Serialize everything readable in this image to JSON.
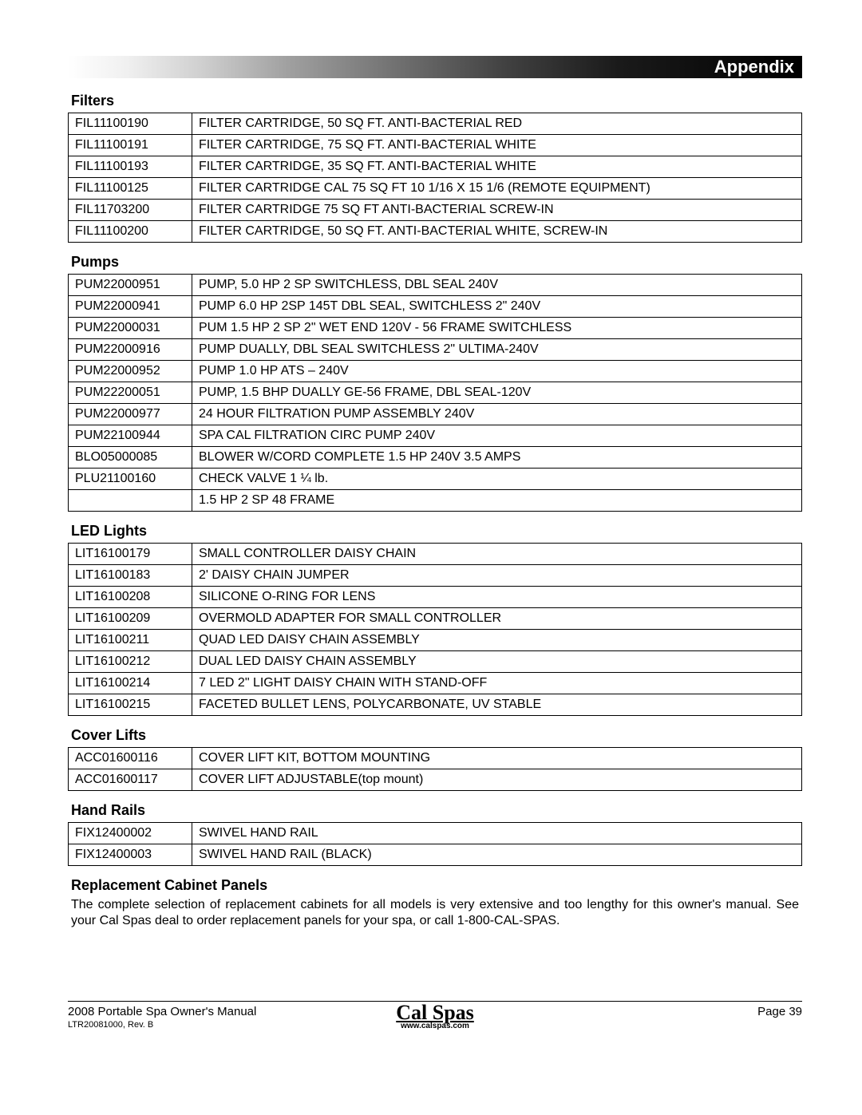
{
  "header": {
    "title": "Appendix"
  },
  "sections": [
    {
      "title": "Filters",
      "rows": [
        [
          "FIL11100190",
          "FILTER CARTRIDGE, 50 SQ FT. ANTI-BACTERIAL RED"
        ],
        [
          "FIL11100191",
          "FILTER CARTRIDGE, 75 SQ FT. ANTI-BACTERIAL WHITE"
        ],
        [
          "FIL11100193",
          "FILTER CARTRIDGE, 35 SQ FT. ANTI-BACTERIAL WHITE"
        ],
        [
          "FIL11100125",
          "FILTER CARTRIDGE CAL 75 SQ FT 10 1/16 X 15 1/6 (REMOTE EQUIPMENT)"
        ],
        [
          "FIL11703200",
          "FILTER CARTRIDGE 75 SQ FT ANTI-BACTERIAL SCREW-IN"
        ],
        [
          "FIL11100200",
          "FILTER CARTRIDGE, 50 SQ FT. ANTI-BACTERIAL WHITE, SCREW-IN"
        ]
      ]
    },
    {
      "title": "Pumps",
      "rows": [
        [
          "PUM22000951",
          "PUMP,  5.0 HP 2 SP SWITCHLESS, DBL SEAL 240V"
        ],
        [
          "PUM22000941",
          "PUMP 6.0 HP 2SP 145T DBL SEAL, SWITCHLESS 2\" 240V"
        ],
        [
          "PUM22000031",
          "PUM 1.5 HP 2 SP 2\" WET END 120V - 56 FRAME SWITCHLESS"
        ],
        [
          "PUM22000916",
          "PUMP  DUALLY, DBL SEAL SWITCHLESS 2\" ULTIMA-240V"
        ],
        [
          "PUM22000952",
          "PUMP  1.0 HP ATS – 240V"
        ],
        [
          "PUM22200051",
          "PUMP, 1.5  BHP DUALLY GE-56 FRAME, DBL SEAL-120V"
        ],
        [
          "PUM22000977",
          "24 HOUR FILTRATION PUMP ASSEMBLY 240V"
        ],
        [
          "PUM22100944",
          "SPA CAL FILTRATION CIRC PUMP 240V"
        ],
        [
          "BLO05000085",
          "BLOWER W/CORD COMPLETE 1.5 HP 240V 3.5 AMPS"
        ],
        [
          "PLU21100160",
          "CHECK VALVE 1 ¼ lb."
        ],
        [
          "",
          "1.5 HP 2 SP 48 FRAME"
        ]
      ]
    },
    {
      "title": "LED Lights",
      "rows": [
        [
          "LIT16100179",
          "SMALL CONTROLLER DAISY CHAIN"
        ],
        [
          "LIT16100183",
          "2' DAISY CHAIN JUMPER"
        ],
        [
          "LIT16100208",
          "SILICONE O-RING FOR LENS"
        ],
        [
          "LIT16100209",
          "OVERMOLD ADAPTER FOR SMALL CONTROLLER"
        ],
        [
          "LIT16100211",
          "QUAD LED DAISY CHAIN ASSEMBLY"
        ],
        [
          "LIT16100212",
          "DUAL LED DAISY CHAIN ASSEMBLY"
        ],
        [
          "LIT16100214",
          "7 LED 2\" LIGHT DAISY CHAIN WITH STAND-OFF"
        ],
        [
          "LIT16100215",
          "FACETED BULLET LENS, POLYCARBONATE, UV STABLE"
        ]
      ]
    },
    {
      "title": "Cover Lifts",
      "rows": [
        [
          "ACC01600116",
          "COVER LIFT KIT, BOTTOM MOUNTING"
        ],
        [
          "ACC01600117",
          "COVER LIFT ADJUSTABLE(top mount)"
        ]
      ]
    },
    {
      "title": "Hand Rails",
      "rows": [
        [
          "FIX12400002",
          "SWIVEL HAND RAIL"
        ],
        [
          "FIX12400003",
          "SWIVEL HAND RAIL (BLACK)"
        ]
      ]
    }
  ],
  "replacement": {
    "title": "Replacement Cabinet Panels",
    "text": "The complete selection of replacement cabinets for all models is very extensive and too lengthy for this owner's manual. See your Cal Spas deal to order replacement panels for your spa, or call 1-800-CAL-SPAS."
  },
  "footer": {
    "left_line1": "2008 Portable Spa Owner's Manual",
    "left_line2": "LTR20081000, Rev. B",
    "logo_text": "Cal Spas",
    "logo_url": "www.calspas.com",
    "right": "Page 39"
  }
}
